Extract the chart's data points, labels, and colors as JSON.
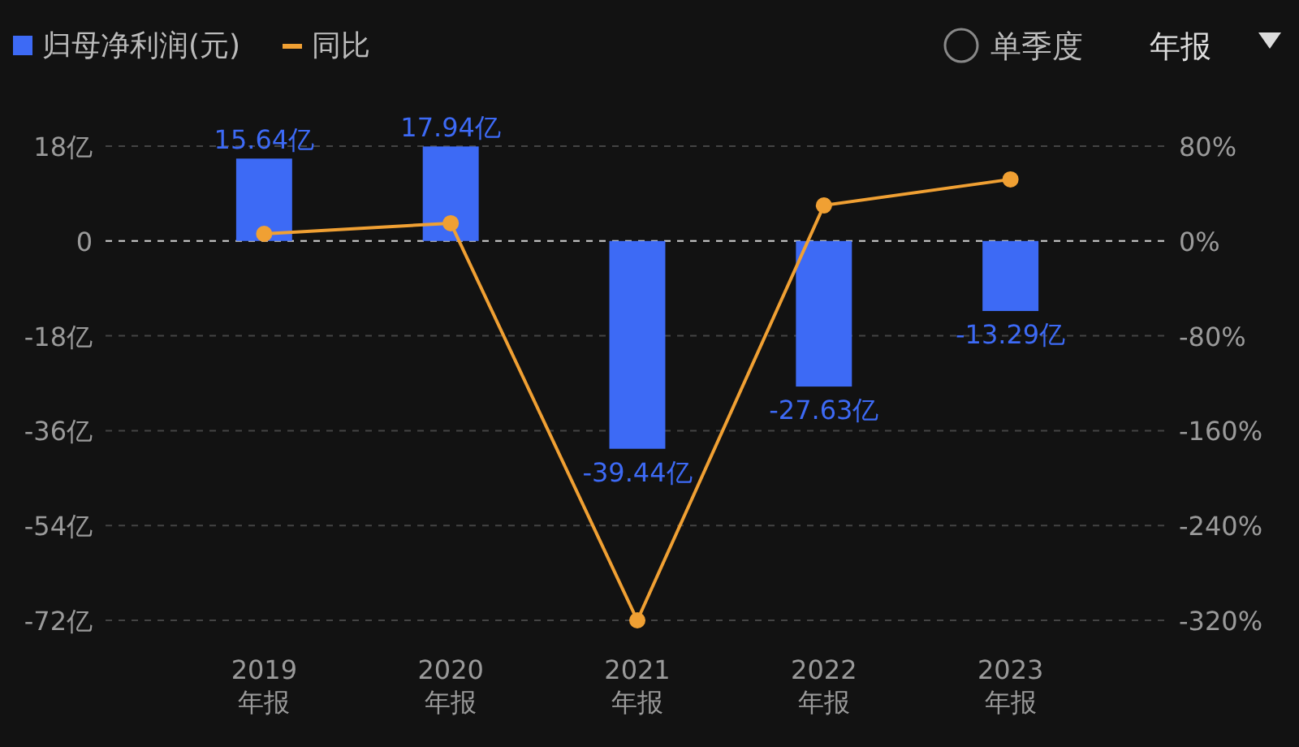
{
  "chart_data": {
    "type": "bar",
    "categories": [
      "2019\n年报",
      "2020\n年报",
      "2021\n年报",
      "2022\n年报",
      "2023\n年报"
    ],
    "series": [
      {
        "name": "归母净利润(元)",
        "color": "#3d6af5",
        "values": [
          15.64,
          17.94,
          -39.44,
          -27.63,
          -13.29
        ],
        "value_labels": [
          "15.64亿",
          "17.94亿",
          "-39.44亿",
          "-27.63亿",
          "-13.29亿"
        ]
      },
      {
        "name": "同比",
        "type": "line",
        "axis": "y2",
        "color": "#f0a033",
        "marker": "circle",
        "values": [
          6,
          15,
          -320,
          30,
          52
        ]
      }
    ],
    "ylim": [
      -72,
      18
    ],
    "yticks": [
      {
        "value": 18,
        "label": "18亿"
      },
      {
        "value": 0,
        "label": "0"
      },
      {
        "value": -18,
        "label": "-18亿"
      },
      {
        "value": -36,
        "label": "-36亿"
      },
      {
        "value": -54,
        "label": "-54亿"
      },
      {
        "value": -72,
        "label": "-72亿"
      }
    ],
    "y2lim": [
      -320,
      80
    ],
    "y2ticks": [
      {
        "value": 80,
        "label": "80%"
      },
      {
        "value": 0,
        "label": "0%"
      },
      {
        "value": -80,
        "label": "-80%"
      },
      {
        "value": -160,
        "label": "-160%"
      },
      {
        "value": -240,
        "label": "-240%"
      },
      {
        "value": -320,
        "label": "-320%"
      }
    ],
    "grid": "y",
    "legend": "top left",
    "ref_lines": [
      {
        "axis": "y",
        "value": 0,
        "color": "#cccccc",
        "line_style": "dashed"
      }
    ],
    "annotations": [
      "单季度",
      "年报"
    ]
  }
}
